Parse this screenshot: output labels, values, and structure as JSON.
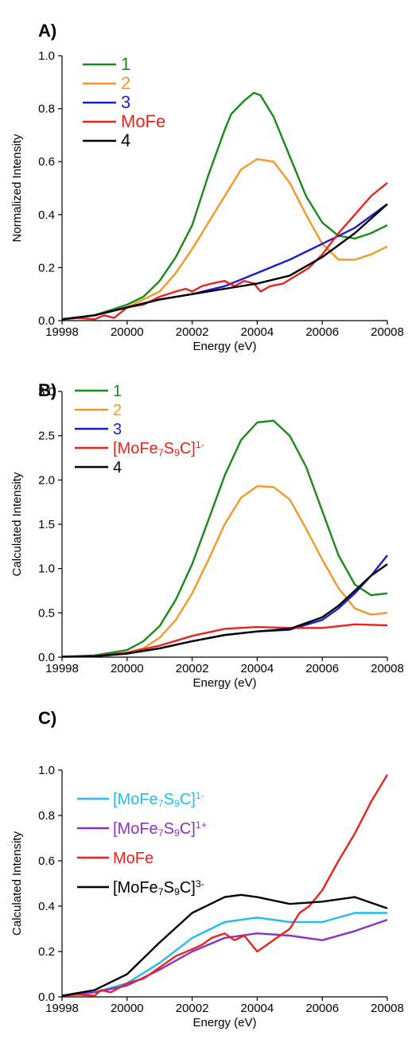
{
  "chart_data": [
    {
      "panel_label": "A)",
      "type": "line",
      "xlabel": "Energy  (eV)",
      "ylabel": "Normalized Intensity",
      "xlim": [
        19998,
        20008
      ],
      "ylim": [
        0,
        1.0
      ],
      "xticks": [
        19998,
        20000,
        20002,
        20004,
        20006,
        20008
      ],
      "xtick_labels": [
        "19998",
        "20000",
        "20002",
        "20004",
        "20006",
        "20008"
      ],
      "yticks": [
        0,
        0.2,
        0.4,
        0.6,
        0.8,
        1.0
      ],
      "ytick_labels": [
        "0.0",
        "0.2",
        "0.4",
        "0.6",
        "0.8",
        "1.0"
      ],
      "legend_position": "top-left",
      "series": [
        {
          "name": "1",
          "color": "#1a8a1a",
          "x": [
            19998,
            19999,
            20000,
            20000.5,
            20001,
            20001.5,
            20002,
            20002.5,
            20003,
            20003.2,
            20003.6,
            20003.9,
            20004.1,
            20004.5,
            20005,
            20005.5,
            20006,
            20006.5,
            20007,
            20007.5,
            20008
          ],
          "y": [
            0.005,
            0.02,
            0.06,
            0.09,
            0.15,
            0.24,
            0.36,
            0.55,
            0.72,
            0.78,
            0.83,
            0.86,
            0.85,
            0.77,
            0.62,
            0.47,
            0.37,
            0.32,
            0.31,
            0.33,
            0.36
          ]
        },
        {
          "name": "2",
          "color": "#f5962a",
          "x": [
            19998,
            19999,
            20000,
            20001,
            20001.5,
            20002,
            20002.5,
            20003,
            20003.5,
            20004,
            20004.5,
            20005,
            20005.5,
            20006,
            20006.5,
            20007,
            20007.5,
            20008
          ],
          "y": [
            0.005,
            0.02,
            0.05,
            0.11,
            0.18,
            0.27,
            0.37,
            0.47,
            0.57,
            0.61,
            0.6,
            0.52,
            0.4,
            0.29,
            0.23,
            0.23,
            0.25,
            0.28
          ]
        },
        {
          "name": "3",
          "color": "#1c1cc8",
          "x": [
            19998,
            19999,
            20000,
            20001,
            20002,
            20003,
            20004,
            20005,
            20006,
            20007,
            20008
          ],
          "y": [
            0.005,
            0.02,
            0.05,
            0.08,
            0.1,
            0.13,
            0.18,
            0.23,
            0.29,
            0.35,
            0.44
          ]
        },
        {
          "name": "MoFe",
          "color": "#e8231e",
          "x": [
            19998,
            19998.5,
            19999,
            19999.3,
            19999.6,
            20000,
            20000.5,
            20001,
            20001.5,
            20001.8,
            20002,
            20002.3,
            20002.6,
            20003,
            20003.3,
            20003.6,
            20003.9,
            20004.1,
            20004.4,
            20004.8,
            20005.2,
            20005.6,
            20006,
            20006.5,
            20007,
            20007.5,
            20008
          ],
          "y": [
            0.005,
            0.01,
            0.005,
            0.02,
            0.01,
            0.05,
            0.06,
            0.09,
            0.11,
            0.12,
            0.11,
            0.13,
            0.14,
            0.15,
            0.13,
            0.15,
            0.14,
            0.11,
            0.13,
            0.14,
            0.17,
            0.2,
            0.25,
            0.33,
            0.4,
            0.47,
            0.52
          ]
        },
        {
          "name": "4",
          "color": "#000000",
          "x": [
            19998,
            19999,
            20000,
            20001,
            20002,
            20003,
            20004,
            20005,
            20006,
            20007,
            20008
          ],
          "y": [
            0.005,
            0.02,
            0.05,
            0.08,
            0.1,
            0.12,
            0.14,
            0.17,
            0.24,
            0.33,
            0.44
          ]
        }
      ]
    },
    {
      "panel_label": "B)",
      "type": "line",
      "xlabel": "Energy  (eV)",
      "ylabel": "Calculated Intensity",
      "xlim": [
        19998,
        20008
      ],
      "ylim": [
        0,
        3.0
      ],
      "xticks": [
        19998,
        20000,
        20002,
        20004,
        20006,
        20008
      ],
      "xtick_labels": [
        "19998",
        "20000",
        "20002",
        "20004",
        "20006",
        "20008"
      ],
      "yticks": [
        0,
        0.5,
        1.0,
        1.5,
        2.0,
        2.5,
        3.0
      ],
      "ytick_labels": [
        "0.0",
        "0.5",
        "1.0",
        "1.5",
        "2.0",
        "2.5",
        "3.0"
      ],
      "legend_position": "top-left",
      "series": [
        {
          "name": "1",
          "color": "#1a8a1a",
          "x": [
            19998,
            19999,
            20000,
            20000.5,
            20001,
            20001.5,
            20002,
            20002.5,
            20003,
            20003.5,
            20004,
            20004.5,
            20005,
            20005.5,
            20006,
            20006.5,
            20007,
            20007.5,
            20008
          ],
          "y": [
            0.005,
            0.02,
            0.08,
            0.18,
            0.35,
            0.65,
            1.05,
            1.55,
            2.05,
            2.45,
            2.65,
            2.67,
            2.5,
            2.15,
            1.65,
            1.15,
            0.82,
            0.7,
            0.72
          ]
        },
        {
          "name": "2",
          "color": "#f5962a",
          "x": [
            19998,
            19999,
            20000,
            20000.5,
            20001,
            20001.5,
            20002,
            20002.5,
            20003,
            20003.5,
            20004,
            20004.5,
            20005,
            20005.5,
            20006,
            20006.5,
            20007,
            20007.5,
            20008
          ],
          "y": [
            0.005,
            0.01,
            0.05,
            0.1,
            0.22,
            0.42,
            0.72,
            1.1,
            1.5,
            1.8,
            1.93,
            1.92,
            1.78,
            1.45,
            1.1,
            0.78,
            0.55,
            0.48,
            0.5
          ]
        },
        {
          "name": "3",
          "color": "#1c1cc8",
          "x": [
            19998,
            19999,
            20000,
            20001,
            20002,
            20003,
            20004,
            20005,
            20006,
            20006.5,
            20007,
            20007.5,
            20008
          ],
          "y": [
            0.005,
            0.01,
            0.04,
            0.1,
            0.18,
            0.25,
            0.29,
            0.31,
            0.42,
            0.55,
            0.72,
            0.92,
            1.15
          ]
        },
        {
          "name": "[MoFe7S9C]1-",
          "color": "#e8231e",
          "x": [
            19998,
            19999,
            20000,
            20001,
            20002,
            20003,
            20004,
            20005,
            20006,
            20007,
            20008
          ],
          "y": [
            0.005,
            0.01,
            0.05,
            0.13,
            0.24,
            0.32,
            0.34,
            0.33,
            0.33,
            0.37,
            0.36
          ]
        },
        {
          "name": "4",
          "color": "#000000",
          "x": [
            19998,
            19999,
            20000,
            20001,
            20002,
            20003,
            20004,
            20005,
            20006,
            20006.5,
            20007,
            20007.5,
            20008
          ],
          "y": [
            0.005,
            0.01,
            0.04,
            0.1,
            0.18,
            0.25,
            0.29,
            0.32,
            0.45,
            0.58,
            0.75,
            0.92,
            1.05
          ]
        }
      ]
    },
    {
      "panel_label": "C)",
      "type": "line",
      "xlabel": "Energy  (eV)",
      "ylabel": "Calculated Intensity",
      "xlim": [
        19998,
        20008
      ],
      "ylim": [
        0,
        1.0
      ],
      "xticks": [
        19998,
        20000,
        20002,
        20004,
        20006,
        20008
      ],
      "xtick_labels": [
        "19998",
        "20000",
        "20002",
        "20004",
        "20006",
        "20008"
      ],
      "yticks": [
        0,
        0.2,
        0.4,
        0.6,
        0.8,
        1.0
      ],
      "ytick_labels": [
        "0.0",
        "0.2",
        "0.4",
        "0.6",
        "0.8",
        "1.0"
      ],
      "legend_position": "top-left",
      "series": [
        {
          "name": "[MoFe7S9C]1-",
          "color": "#22bcee",
          "x": [
            19998,
            19999,
            20000,
            20001,
            20002,
            20003,
            20004,
            20005,
            20006,
            20007,
            20008
          ],
          "y": [
            0.005,
            0.02,
            0.06,
            0.15,
            0.26,
            0.33,
            0.35,
            0.33,
            0.33,
            0.37,
            0.37
          ]
        },
        {
          "name": "[MoFe7S9C]1+",
          "color": "#8c31c4",
          "x": [
            19998,
            19999,
            20000,
            20001,
            20002,
            20003,
            20004,
            20005,
            20006,
            20007,
            20008
          ],
          "y": [
            0.005,
            0.02,
            0.05,
            0.12,
            0.2,
            0.26,
            0.28,
            0.27,
            0.25,
            0.29,
            0.34
          ]
        },
        {
          "name": "MoFe",
          "color": "#e8231e",
          "x": [
            19998,
            19998.5,
            19999,
            19999.2,
            19999.5,
            20000,
            20000.5,
            20001,
            20001.5,
            20002,
            20002.3,
            20002.6,
            20003,
            20003.3,
            20003.6,
            20004,
            20004.3,
            20004.7,
            20005,
            20005.3,
            20005.6,
            20006,
            20006.5,
            20007,
            20007.5,
            20008
          ],
          "y": [
            0.005,
            0.01,
            0.005,
            0.03,
            0.02,
            0.06,
            0.08,
            0.13,
            0.18,
            0.21,
            0.23,
            0.26,
            0.28,
            0.25,
            0.27,
            0.2,
            0.23,
            0.27,
            0.3,
            0.37,
            0.4,
            0.47,
            0.6,
            0.72,
            0.86,
            0.98
          ]
        },
        {
          "name": "[MoFe7S9C]3-",
          "color": "#000000",
          "x": [
            19998,
            19999,
            20000,
            20001,
            20002,
            20003,
            20003.5,
            20004,
            20005,
            20006,
            20007,
            20008
          ],
          "y": [
            0.005,
            0.03,
            0.1,
            0.24,
            0.37,
            0.44,
            0.45,
            0.44,
            0.41,
            0.42,
            0.44,
            0.39
          ]
        }
      ]
    }
  ]
}
